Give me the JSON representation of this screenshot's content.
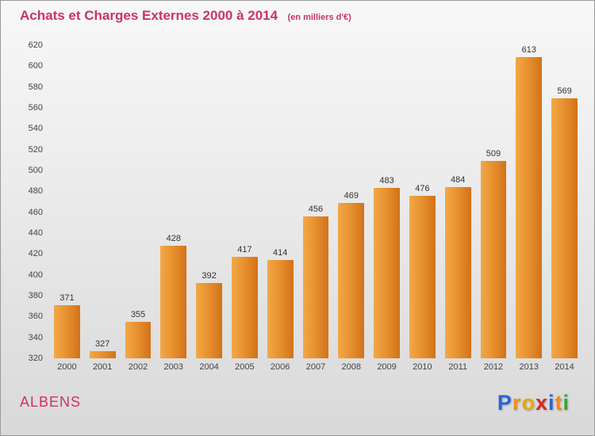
{
  "header": {
    "title": "Achats et Charges Externes 2000 à 2014",
    "subtitle": "(en milliers d'€)"
  },
  "footer": {
    "location": "ALBENS",
    "brand_letters": [
      {
        "ch": "P",
        "color": "#2b62d9"
      },
      {
        "ch": "r",
        "color": "#f08c1e"
      },
      {
        "ch": "o",
        "color": "#e8a70c"
      },
      {
        "ch": "x",
        "color": "#d8262c"
      },
      {
        "ch": "i",
        "color": "#2b62d9"
      },
      {
        "ch": "t",
        "color": "#f08c1e"
      },
      {
        "ch": "i",
        "color": "#3aa52a"
      }
    ]
  },
  "colors": {
    "title": "#cc3366",
    "location": "#cc3366",
    "bar_main": "#e89230",
    "value_label": "#333333",
    "tick_label": "#444444"
  },
  "chart_data": {
    "type": "bar",
    "title": "Achats et Charges Externes 2000 à 2014",
    "subtitle": "(en milliers d'€)",
    "categories": [
      "2000",
      "2001",
      "2002",
      "2003",
      "2004",
      "2005",
      "2006",
      "2007",
      "2008",
      "2009",
      "2010",
      "2011",
      "2012",
      "2013",
      "2014"
    ],
    "values": [
      371,
      327,
      355,
      428,
      392,
      417,
      414,
      456,
      469,
      483,
      476,
      484,
      509,
      613,
      569
    ],
    "xlabel": "",
    "ylabel": "",
    "ylim": [
      320,
      620
    ],
    "ytick_step": 20,
    "grid": false,
    "legend": false
  }
}
